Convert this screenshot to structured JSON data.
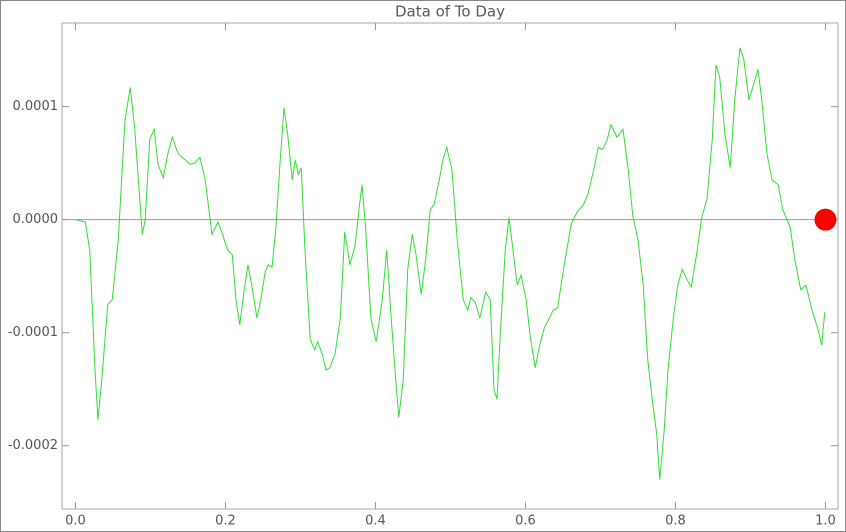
{
  "chart_data": {
    "type": "line",
    "title": "Data of To Day",
    "x": [
      0,
      0.013,
      0.019,
      0.026,
      0.03,
      0.035,
      0.043,
      0.049,
      0.057,
      0.066,
      0.073,
      0.079,
      0.089,
      0.093,
      0.099,
      0.105,
      0.11,
      0.117,
      0.123,
      0.129,
      0.137,
      0.146,
      0.153,
      0.159,
      0.166,
      0.173,
      0.182,
      0.19,
      0.195,
      0.203,
      0.209,
      0.214,
      0.219,
      0.225,
      0.23,
      0.235,
      0.242,
      0.247,
      0.253,
      0.257,
      0.262,
      0.267,
      0.273,
      0.278,
      0.283,
      0.289,
      0.293,
      0.297,
      0.301,
      0.306,
      0.313,
      0.319,
      0.323,
      0.329,
      0.334,
      0.339,
      0.346,
      0.353,
      0.359,
      0.366,
      0.373,
      0.378,
      0.382,
      0.387,
      0.394,
      0.401,
      0.409,
      0.415,
      0.421,
      0.427,
      0.431,
      0.437,
      0.443,
      0.449,
      0.454,
      0.461,
      0.467,
      0.473,
      0.478,
      0.485,
      0.49,
      0.495,
      0.502,
      0.509,
      0.517,
      0.523,
      0.527,
      0.533,
      0.539,
      0.547,
      0.553,
      0.558,
      0.562,
      0.566,
      0.573,
      0.578,
      0.583,
      0.589,
      0.594,
      0.601,
      0.606,
      0.613,
      0.619,
      0.625,
      0.631,
      0.637,
      0.643,
      0.649,
      0.654,
      0.661,
      0.669,
      0.677,
      0.683,
      0.691,
      0.697,
      0.703,
      0.709,
      0.714,
      0.722,
      0.73,
      0.737,
      0.743,
      0.75,
      0.757,
      0.763,
      0.77,
      0.775,
      0.779,
      0.785,
      0.79,
      0.797,
      0.803,
      0.809,
      0.814,
      0.821,
      0.829,
      0.835,
      0.842,
      0.849,
      0.854,
      0.859,
      0.866,
      0.873,
      0.879,
      0.886,
      0.891,
      0.898,
      0.903,
      0.91,
      0.915,
      0.922,
      0.929,
      0.937,
      0.943,
      0.953,
      0.959,
      0.967,
      0.974,
      0.982,
      0.99,
      0.995,
      0.999
    ],
    "series": [
      {
        "color": "#33dd33",
        "values": [
          0,
          -2e-06,
          -2.7e-05,
          -0.000133,
          -0.000177,
          -0.000142,
          -7.5e-05,
          -7.1e-05,
          -1.8e-05,
          8.8e-05,
          0.000117,
          8e-05,
          -1.3e-05,
          0,
          7.1e-05,
          8e-05,
          4.9e-05,
          3.7e-05,
          5.8e-05,
          7.3e-05,
          5.8e-05,
          5.3e-05,
          4.9e-05,
          5e-05,
          5.5e-05,
          3.5e-05,
          -1.3e-05,
          -2e-06,
          -1.1e-05,
          -2.7e-05,
          -3.1e-05,
          -7.1e-05,
          -9.3e-05,
          -6.2e-05,
          -4e-05,
          -5.8e-05,
          -8.7e-05,
          -7.1e-05,
          -4.6e-05,
          -4e-05,
          -4.2e-05,
          -9e-06,
          5.3e-05,
          9.9e-05,
          7.5e-05,
          3.5e-05,
          5.3e-05,
          4e-05,
          4.6e-05,
          -2.7e-05,
          -0.000106,
          -0.000115,
          -0.000108,
          -0.000119,
          -0.000133,
          -0.000131,
          -0.000119,
          -8.8e-05,
          -1.1e-05,
          -4e-05,
          -2.2e-05,
          9e-06,
          3.1e-05,
          -9e-06,
          -8.8e-05,
          -0.000108,
          -7.1e-05,
          -2.7e-05,
          -8.8e-05,
          -0.000142,
          -0.000175,
          -0.000142,
          -4.4e-05,
          -1.3e-05,
          -3.1e-05,
          -6.6e-05,
          -3.5e-05,
          9e-06,
          1.3e-05,
          3.5e-05,
          5.3e-05,
          6.4e-05,
          4.4e-05,
          -1.8e-05,
          -7.1e-05,
          -8e-05,
          -6.9e-05,
          -7.3e-05,
          -8.7e-05,
          -6.4e-05,
          -7.1e-05,
          -0.00015,
          -0.000159,
          -0.000106,
          -2.7e-05,
          2e-06,
          -2.5e-05,
          -5.8e-05,
          -4.9e-05,
          -7.1e-05,
          -0.000102,
          -0.000131,
          -0.000111,
          -9.6e-05,
          -8.8e-05,
          -8e-05,
          -7.8e-05,
          -5.1e-05,
          -3.1e-05,
          -4e-06,
          7e-06,
          1.3e-05,
          2.2e-05,
          4.4e-05,
          6.4e-05,
          6.2e-05,
          7.1e-05,
          8.4e-05,
          7.3e-05,
          8e-05,
          4.4e-05,
          4e-06,
          -1.8e-05,
          -5.8e-05,
          -0.000124,
          -0.000164,
          -0.00019,
          -0.00023,
          -0.000186,
          -0.000133,
          -8.8e-05,
          -5.8e-05,
          -4.4e-05,
          -5.1e-05,
          -6e-05,
          -2.7e-05,
          2e-06,
          1.8e-05,
          7.1e-05,
          0.000137,
          0.000126,
          7.5e-05,
          4.6e-05,
          0.000106,
          0.000152,
          0.000142,
          0.000106,
          0.000117,
          0.000133,
          0.000106,
          5.8e-05,
          3.5e-05,
          3.1e-05,
          9e-06,
          -7e-06,
          -3.5e-05,
          -6.2e-05,
          -5.8e-05,
          -8e-05,
          -9.7e-05,
          -0.000111,
          -8.2e-05
        ]
      }
    ],
    "marker": {
      "x": 1,
      "y": 0,
      "color": "#ff0000"
    },
    "xlim": [
      -0.018,
      1.0167
    ],
    "ylim": [
      -0.000256,
      0.000174
    ],
    "xticks": [
      {
        "value": 0,
        "label": "0.0"
      },
      0.2,
      0.4,
      0.6,
      0.8,
      {
        "value": 1,
        "label": "1.0"
      }
    ],
    "yticks": [
      -0.0002,
      -0.0001,
      {
        "value": 0,
        "label": "0.0000"
      },
      0.0001
    ]
  }
}
